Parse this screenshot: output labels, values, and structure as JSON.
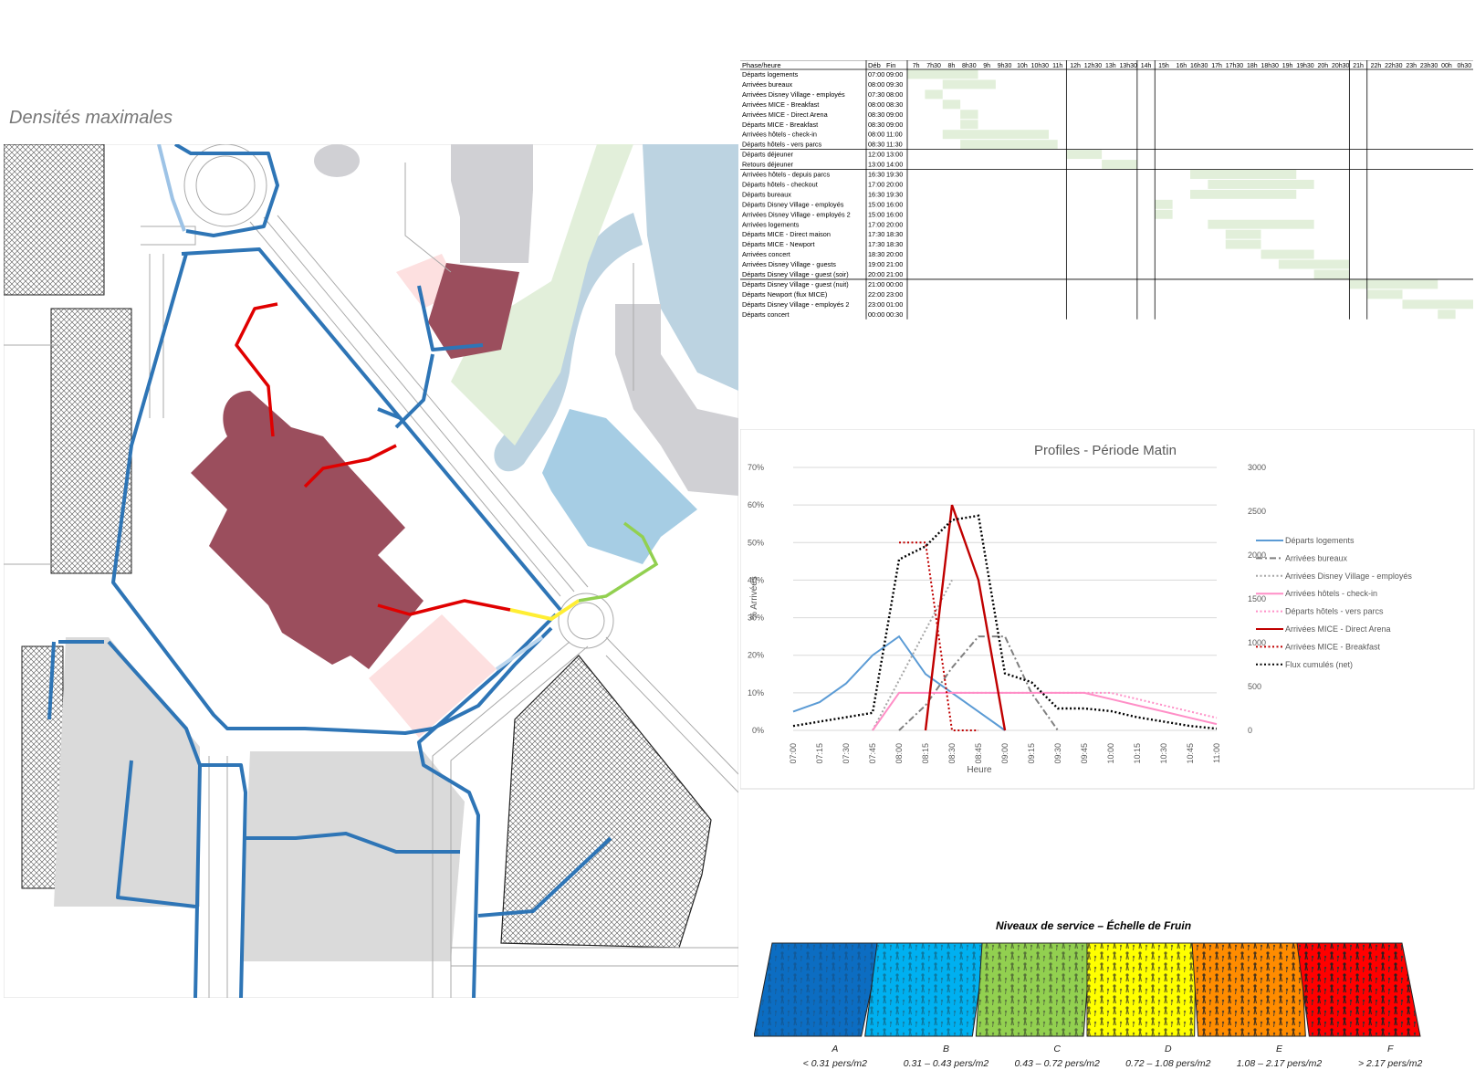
{
  "map": {
    "title": "Densités maximales"
  },
  "schedule": {
    "headers": {
      "phase": "Phase/heure",
      "start": "Déb",
      "end": "Fin",
      "hours": [
        "7h",
        "7h30",
        "8h",
        "8h30",
        "9h",
        "9h30",
        "10h",
        "10h30",
        "11h",
        "12h",
        "12h30",
        "13h",
        "13h30",
        "14h",
        "15h",
        "16h",
        "16h30",
        "17h",
        "17h30",
        "18h",
        "18h30",
        "19h",
        "19h30",
        "20h",
        "20h30",
        "21h",
        "22h",
        "22h30",
        "23h",
        "23h30",
        "00h",
        "0h30"
      ]
    },
    "rows": [
      {
        "phase": "Départs logements",
        "start": "07:00",
        "end": "09:00"
      },
      {
        "phase": "Arrivées bureaux",
        "start": "08:00",
        "end": "09:30"
      },
      {
        "phase": "Arrivées Disney Village - employés",
        "start": "07:30",
        "end": "08:00"
      },
      {
        "phase": "Arrivées MICE - Breakfast",
        "start": "08:00",
        "end": "08:30"
      },
      {
        "phase": "Arrivées MICE - Direct Arena",
        "start": "08:30",
        "end": "09:00"
      },
      {
        "phase": "Départs MICE - Breakfast",
        "start": "08:30",
        "end": "09:00"
      },
      {
        "phase": "Arrivées hôtels - check-in",
        "start": "08:00",
        "end": "11:00"
      },
      {
        "phase": "Départs hôtels - vers parcs",
        "start": "08:30",
        "end": "11:30"
      },
      {
        "phase": "Départs déjeuner",
        "start": "12:00",
        "end": "13:00"
      },
      {
        "phase": "Retours déjeuner",
        "start": "13:00",
        "end": "14:00"
      },
      {
        "phase": "Arrivées hôtels - depuis parcs",
        "start": "16:30",
        "end": "19:30"
      },
      {
        "phase": "Départs hôtels - checkout",
        "start": "17:00",
        "end": "20:00"
      },
      {
        "phase": "Départs bureaux",
        "start": "16:30",
        "end": "19:30"
      },
      {
        "phase": "Départs Disney Village - employés",
        "start": "15:00",
        "end": "16:00"
      },
      {
        "phase": "Arrivées Disney Village - employés 2",
        "start": "15:00",
        "end": "16:00"
      },
      {
        "phase": "Arrivées logements",
        "start": "17:00",
        "end": "20:00"
      },
      {
        "phase": "Départs MICE - Direct maison",
        "start": "17:30",
        "end": "18:30"
      },
      {
        "phase": "Départs MICE - Newport",
        "start": "17:30",
        "end": "18:30"
      },
      {
        "phase": "Arrivées concert",
        "start": "18:30",
        "end": "20:00"
      },
      {
        "phase": "Arrivées Disney Village - guests",
        "start": "19:00",
        "end": "21:00"
      },
      {
        "phase": "Départs Disney Village - guest (soir)",
        "start": "20:00",
        "end": "21:00"
      },
      {
        "phase": "Départs Disney Village - guest (nuit)",
        "start": "21:00",
        "end": "00:00"
      },
      {
        "phase": "Départs Newport (flux MICE)",
        "start": "22:00",
        "end": "23:00"
      },
      {
        "phase": "Départs Disney Village - employés 2",
        "start": "23:00",
        "end": "01:00"
      },
      {
        "phase": "Départs concert",
        "start": "00:00",
        "end": "00:30"
      }
    ],
    "bar_color": "#e2efda"
  },
  "chart_data": {
    "type": "line",
    "title": "Profiles - Période Matin",
    "xlabel": "Heure",
    "ylabel": "% Arrivées",
    "x": [
      "07:00",
      "07:15",
      "07:30",
      "07:45",
      "08:00",
      "08:15",
      "08:30",
      "08:45",
      "09:00",
      "09:15",
      "09:30",
      "09:45",
      "10:00",
      "10:15",
      "10:30",
      "10:45",
      "11:00"
    ],
    "y_ticks": [
      "0%",
      "10%",
      "20%",
      "30%",
      "40%",
      "50%",
      "60%",
      "70%"
    ],
    "y2_ticks": [
      "0",
      "500",
      "1000",
      "1500",
      "2000",
      "2500",
      "3000"
    ],
    "ylim": [
      0,
      0.7
    ],
    "y2lim": [
      0,
      3000
    ],
    "legend_position": "right",
    "series": [
      {
        "name": "Départs logements",
        "axis": "left",
        "color": "#5b9bd5",
        "dash": "solid",
        "values": [
          0.05,
          0.075,
          0.125,
          0.2,
          0.25,
          0.15,
          0.1,
          0.05,
          0,
          null,
          null,
          null,
          null,
          null,
          null,
          null,
          null
        ]
      },
      {
        "name": "Arrivées bureaux",
        "axis": "left",
        "color": "#808080",
        "dash": "dashdot",
        "values": [
          null,
          null,
          null,
          null,
          0.0,
          0.0667,
          0.1667,
          0.25,
          0.25,
          0.1,
          0,
          null,
          null,
          null,
          null,
          null,
          null
        ]
      },
      {
        "name": "Arrivées Disney Village - employés",
        "axis": "left",
        "color": "#a5a5a5",
        "dash": "dotted",
        "values": [
          null,
          null,
          null,
          0,
          0.1333,
          0.2667,
          0.4,
          null,
          null,
          null,
          null,
          null,
          null,
          null,
          null,
          null,
          null
        ]
      },
      {
        "name": "Arrivées hôtels - check-in",
        "axis": "left",
        "color": "#ff8fc7",
        "dash": "solid",
        "values": [
          null,
          null,
          null,
          0,
          0.1,
          0.1,
          0.1,
          0.1,
          0.1,
          0.1,
          0.1,
          0.1,
          0.0833,
          0.0667,
          0.05,
          0.0333,
          0.0167
        ]
      },
      {
        "name": "Départs hôtels - vers parcs",
        "axis": "left",
        "color": "#ff8fc7",
        "dash": "dotted",
        "values": [
          null,
          null,
          null,
          null,
          null,
          null,
          0.1,
          0.1,
          0.1,
          0.1,
          0.1,
          0.1,
          0.1,
          0.0833,
          0.0667,
          0.05,
          0.0333
        ]
      },
      {
        "name": "Arrivées MICE - Direct Arena",
        "axis": "left",
        "color": "#c00000",
        "dash": "solid",
        "values": [
          null,
          null,
          null,
          null,
          null,
          0,
          0.6,
          0.4,
          0,
          null,
          null,
          null,
          null,
          null,
          null,
          null,
          null
        ]
      },
      {
        "name": "Arrivées MICE - Breakfast",
        "axis": "left",
        "color": "#c00000",
        "dash": "dotted",
        "values": [
          null,
          null,
          null,
          null,
          0.5,
          0.5,
          0,
          0,
          null,
          null,
          null,
          null,
          null,
          null,
          null,
          null,
          null
        ]
      },
      {
        "name": "Flux cumulés (net)",
        "axis": "right",
        "color": "#000000",
        "dash": "dotted",
        "values": [
          50,
          100,
          150,
          200,
          1950,
          2100,
          2400,
          2450,
          650,
          550,
          250,
          250,
          220,
          150,
          100,
          50,
          20
        ]
      }
    ]
  },
  "fruin": {
    "title": "Niveaux de service – Échelle de Fruin",
    "levels": [
      {
        "letter": "A",
        "range": "< 0.31 pers/m2",
        "color": "#0c6dc2"
      },
      {
        "letter": "B",
        "range": "0.31 – 0.43 pers/m2",
        "color": "#00b0f0"
      },
      {
        "letter": "C",
        "range": "0.43 – 0.72 pers/m2",
        "color": "#92d050"
      },
      {
        "letter": "D",
        "range": "0.72 – 1.08 pers/m2",
        "color": "#ffff00"
      },
      {
        "letter": "E",
        "range": "1.08 – 2.17 pers/m2",
        "color": "#ff8c00"
      },
      {
        "letter": "F",
        "range": "> 2.17 pers/m2",
        "color": "#ff0000"
      }
    ]
  }
}
